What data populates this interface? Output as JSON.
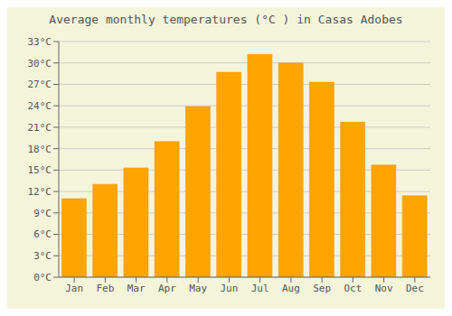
{
  "chart_data": {
    "type": "bar",
    "title": "Average monthly temperatures (°C ) in Casas Adobes",
    "categories": [
      "Jan",
      "Feb",
      "Mar",
      "Apr",
      "May",
      "Jun",
      "Jul",
      "Aug",
      "Sep",
      "Oct",
      "Nov",
      "Dec"
    ],
    "values": [
      11.0,
      13.0,
      15.3,
      19.0,
      23.9,
      28.7,
      31.2,
      30.0,
      27.3,
      21.7,
      15.7,
      11.4
    ],
    "color": "#FFA500",
    "ylim": [
      0,
      33
    ],
    "yticks": [
      {
        "value": 0,
        "label": "0°C"
      },
      {
        "value": 3,
        "label": "3°C"
      },
      {
        "value": 6,
        "label": "6°C"
      },
      {
        "value": 9,
        "label": "9°C"
      },
      {
        "value": 12,
        "label": "12°C"
      },
      {
        "value": 15,
        "label": "15°C"
      },
      {
        "value": 18,
        "label": "18°C"
      },
      {
        "value": 21,
        "label": "21°C"
      },
      {
        "value": 24,
        "label": "24°C"
      },
      {
        "value": 27,
        "label": "27°C"
      },
      {
        "value": 30,
        "label": "30°C"
      },
      {
        "value": 33,
        "label": "33°C"
      }
    ],
    "grid": true
  }
}
